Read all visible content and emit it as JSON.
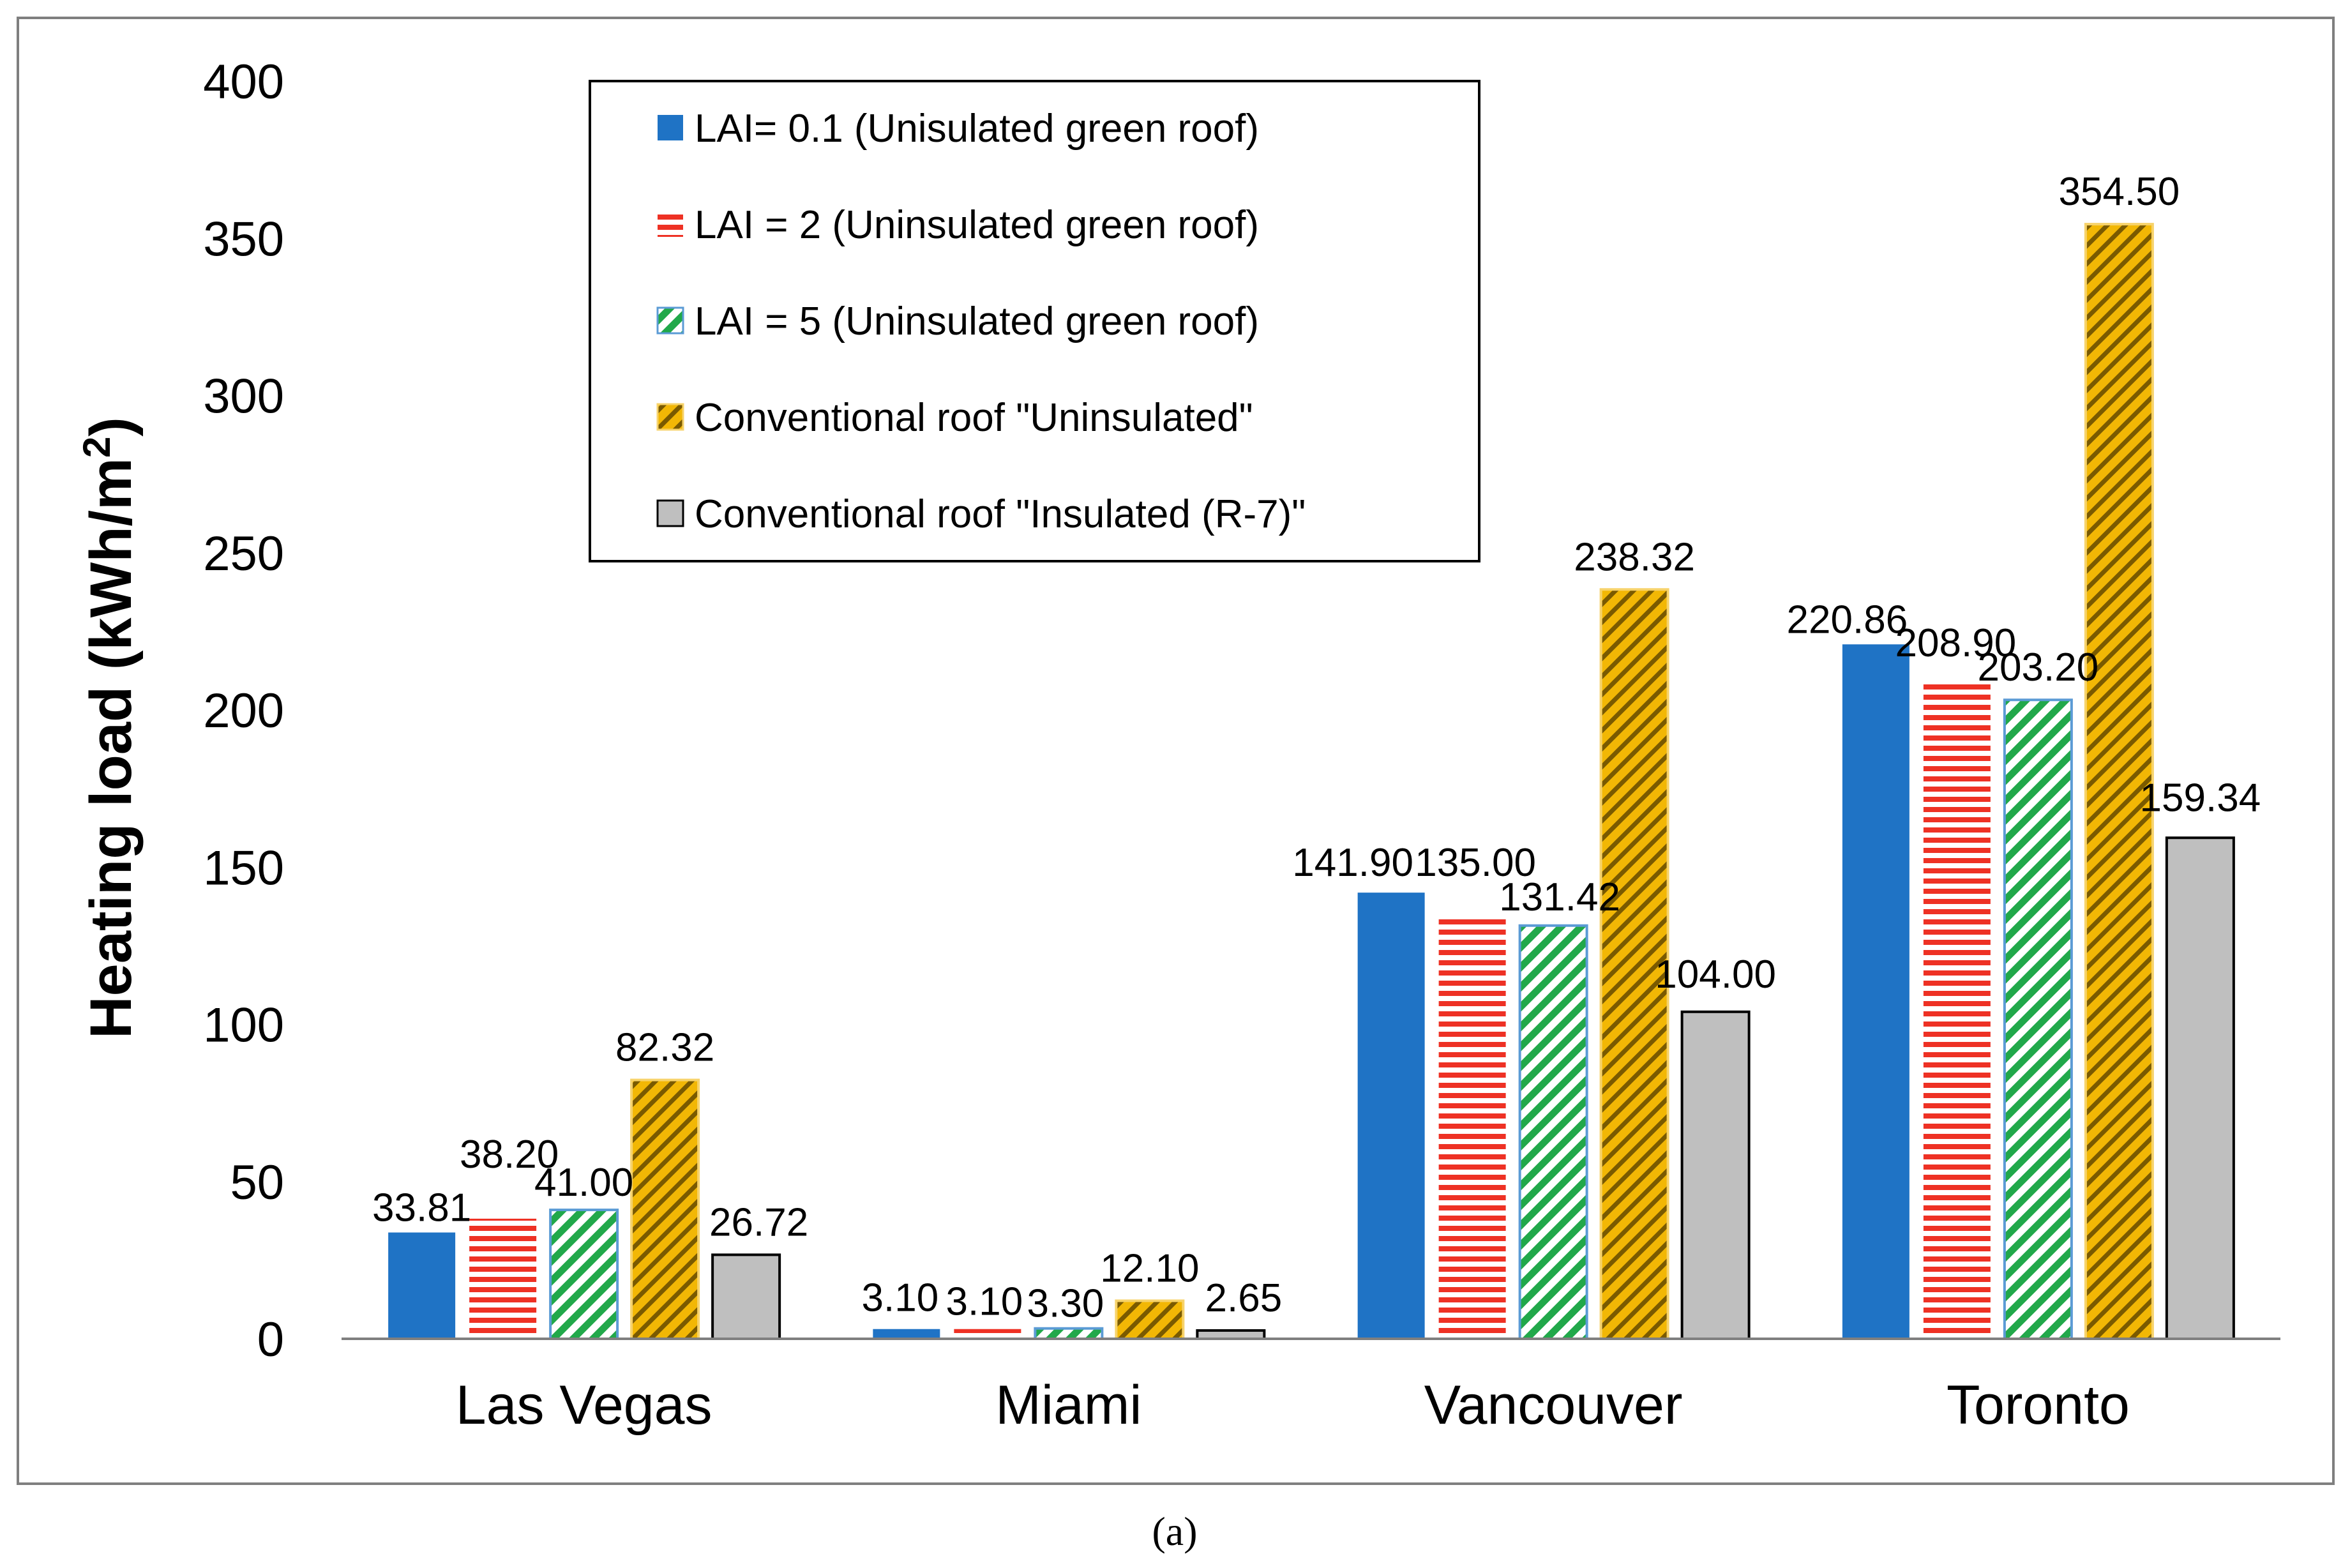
{
  "chart_data": {
    "type": "bar",
    "title": "",
    "xlabel": "",
    "ylabel": "Heating load (kWh/m",
    "ylabel_sup": "2",
    "ylabel_close": ")",
    "ylim": [
      0,
      400
    ],
    "yticks": [
      0,
      50,
      100,
      150,
      200,
      250,
      300,
      350,
      400
    ],
    "categories": [
      "Las Vegas",
      "Miami",
      "Vancouver",
      "Toronto"
    ],
    "legend_position": "top-center",
    "caption": "(a)",
    "series": [
      {
        "name": "LAI= 0.1 (Unisulated green roof)",
        "pattern": "solid",
        "color": "#1f73c5",
        "values": [
          33.81,
          3.1,
          141.9,
          220.86
        ],
        "labels": [
          "33.81",
          "3.10",
          "141.90",
          "220.86"
        ]
      },
      {
        "name": "LAI = 2 (Uninsulated green roof)",
        "pattern": "horizontal",
        "color": "#ee3124",
        "values": [
          38.2,
          3.1,
          135.0,
          208.9
        ],
        "labels": [
          "38.20",
          "3.10",
          "135.00",
          "208.90"
        ]
      },
      {
        "name": "LAI = 5 (Uninsulated green roof)",
        "pattern": "diagonal-green",
        "color": "#21a84a",
        "values": [
          41.0,
          3.3,
          131.42,
          203.2
        ],
        "labels": [
          "41.00",
          "3.30",
          "131.42",
          "203.20"
        ]
      },
      {
        "name": "Conventional roof \"Uninsulated\"",
        "pattern": "diagonal-gold",
        "color": "#f2b705",
        "values": [
          82.32,
          12.1,
          238.32,
          354.5
        ],
        "labels": [
          "82.32",
          "12.10",
          "238.32",
          "354.50"
        ]
      },
      {
        "name": "Conventional roof \"Insulated (R-7)\"",
        "pattern": "solid",
        "color": "#bfbfbf",
        "values": [
          26.72,
          2.65,
          104.0,
          159.34
        ],
        "labels": [
          "26.72",
          "2.65",
          "104.00",
          "159.34"
        ]
      }
    ]
  }
}
